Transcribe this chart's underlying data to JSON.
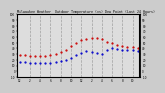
{
  "title": "Milwaukee Weather  Outdoor Temperature (vs) Dew Point (Last 24 Hours)",
  "temp_x": [
    0,
    1,
    2,
    3,
    4,
    5,
    6,
    7,
    8,
    9,
    10,
    11,
    12,
    13,
    14,
    15,
    16,
    17,
    18,
    19,
    20,
    21,
    22,
    23
  ],
  "temp_y": [
    28,
    28,
    27,
    27,
    27,
    27,
    28,
    30,
    34,
    38,
    44,
    50,
    54,
    57,
    58,
    58,
    56,
    52,
    49,
    46,
    44,
    43,
    42,
    41
  ],
  "dew_x": [
    0,
    1,
    2,
    3,
    4,
    5,
    6,
    7,
    8,
    9,
    10,
    11,
    12,
    13,
    14,
    15,
    16,
    17,
    18,
    19,
    20,
    21,
    22,
    23
  ],
  "dew_y": [
    16,
    16,
    15,
    15,
    14,
    14,
    15,
    16,
    18,
    20,
    24,
    28,
    32,
    36,
    34,
    32,
    30,
    38,
    40,
    39,
    38,
    37,
    37,
    36
  ],
  "temp_color": "#cc0000",
  "dew_color": "#0000cc",
  "bg_color": "#cccccc",
  "plot_bg": "#dddddd",
  "grid_color": "#888888",
  "ylim": [
    -10,
    100
  ],
  "xlim": [
    -0.5,
    23.5
  ],
  "ytick_values": [
    -10,
    0,
    10,
    20,
    30,
    40,
    50,
    60,
    70,
    80,
    90,
    100
  ],
  "ytick_labels": [
    "-10",
    "0",
    "10",
    "20",
    "30",
    "40",
    "50",
    "60",
    "70",
    "80",
    "90",
    "100"
  ],
  "xtick_values": [
    0,
    2,
    4,
    6,
    8,
    10,
    12,
    14,
    16,
    18,
    20,
    22
  ],
  "xtick_labels": [
    "12",
    "2",
    "4",
    "6",
    "8",
    "10",
    "12",
    "2",
    "4",
    "6",
    "8",
    "10"
  ],
  "right_ytick_values": [
    -10,
    0,
    10,
    20,
    30,
    40,
    50,
    60,
    70,
    80,
    90,
    100
  ],
  "right_ytick_labels": [
    "-10",
    "0",
    "10",
    "20",
    "30",
    "40",
    "50",
    "60",
    "70",
    "80",
    "90",
    "100"
  ],
  "vgrid_color": "#999999",
  "vgrid_x": [
    2,
    4,
    6,
    8,
    10,
    12,
    14,
    16,
    18,
    20,
    22
  ]
}
